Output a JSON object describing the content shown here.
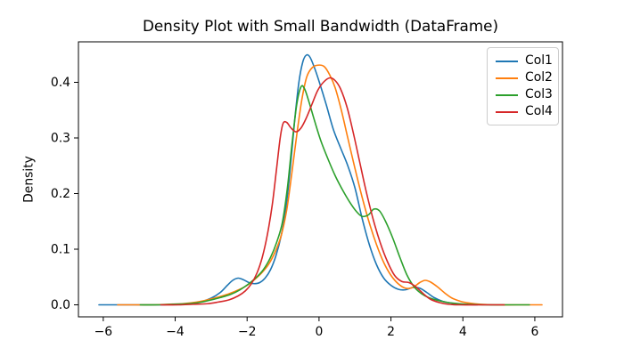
{
  "figure": {
    "title": "Density Plot with Small Bandwidth (DataFrame)",
    "ylabel": "Density"
  },
  "chart_data": {
    "type": "line",
    "subtype": "kde-density",
    "title": "Density Plot with Small Bandwidth (DataFrame)",
    "xlabel": "",
    "ylabel": "Density",
    "grid": false,
    "legend_position": "upper right",
    "xlim": [
      -6.69,
      6.77
    ],
    "ylim": [
      -0.0216,
      0.4728
    ],
    "x_ticks": [
      -6,
      -4,
      -2,
      0,
      2,
      4,
      6
    ],
    "x_tick_labels": [
      "−6",
      "−4",
      "−2",
      "0",
      "2",
      "4",
      "6"
    ],
    "y_ticks": [
      0.0,
      0.1,
      0.2,
      0.3,
      0.4
    ],
    "y_tick_labels": [
      "0.0",
      "0.1",
      "0.2",
      "0.3",
      "0.4"
    ],
    "series": [
      {
        "name": "Col1",
        "color": "#1f77b4",
        "points": [
          [
            -6.12,
            0
          ],
          [
            -5.6,
            0
          ],
          [
            -5.0,
            0
          ],
          [
            -4.4,
            0
          ],
          [
            -4.0,
            0.001
          ],
          [
            -3.6,
            0.002
          ],
          [
            -3.3,
            0.005
          ],
          [
            -3.0,
            0.012
          ],
          [
            -2.75,
            0.022
          ],
          [
            -2.55,
            0.035
          ],
          [
            -2.4,
            0.044
          ],
          [
            -2.25,
            0.048
          ],
          [
            -2.1,
            0.045
          ],
          [
            -1.95,
            0.04
          ],
          [
            -1.8,
            0.038
          ],
          [
            -1.65,
            0.04
          ],
          [
            -1.5,
            0.048
          ],
          [
            -1.35,
            0.063
          ],
          [
            -1.2,
            0.088
          ],
          [
            -1.05,
            0.125
          ],
          [
            -0.92,
            0.175
          ],
          [
            -0.8,
            0.245
          ],
          [
            -0.68,
            0.33
          ],
          [
            -0.56,
            0.4
          ],
          [
            -0.45,
            0.437
          ],
          [
            -0.35,
            0.449
          ],
          [
            -0.25,
            0.445
          ],
          [
            -0.12,
            0.425
          ],
          [
            0.02,
            0.398
          ],
          [
            0.2,
            0.36
          ],
          [
            0.4,
            0.315
          ],
          [
            0.6,
            0.282
          ],
          [
            0.8,
            0.25
          ],
          [
            1.0,
            0.21
          ],
          [
            1.2,
            0.155
          ],
          [
            1.4,
            0.108
          ],
          [
            1.6,
            0.072
          ],
          [
            1.8,
            0.048
          ],
          [
            2.0,
            0.035
          ],
          [
            2.2,
            0.028
          ],
          [
            2.4,
            0.027
          ],
          [
            2.6,
            0.031
          ],
          [
            2.8,
            0.03
          ],
          [
            3.0,
            0.022
          ],
          [
            3.2,
            0.013
          ],
          [
            3.45,
            0.006
          ],
          [
            3.7,
            0.003
          ],
          [
            4.0,
            0.001
          ],
          [
            4.4,
            0
          ]
        ]
      },
      {
        "name": "Col2",
        "color": "#ff7f0e",
        "points": [
          [
            -5.6,
            0
          ],
          [
            -5.1,
            0
          ],
          [
            -4.6,
            0
          ],
          [
            -4.2,
            0.001
          ],
          [
            -3.8,
            0.002
          ],
          [
            -3.4,
            0.005
          ],
          [
            -3.1,
            0.009
          ],
          [
            -2.8,
            0.014
          ],
          [
            -2.5,
            0.02
          ],
          [
            -2.2,
            0.028
          ],
          [
            -2.0,
            0.035
          ],
          [
            -1.8,
            0.045
          ],
          [
            -1.6,
            0.057
          ],
          [
            -1.4,
            0.073
          ],
          [
            -1.2,
            0.098
          ],
          [
            -1.05,
            0.125
          ],
          [
            -0.9,
            0.17
          ],
          [
            -0.76,
            0.235
          ],
          [
            -0.62,
            0.305
          ],
          [
            -0.48,
            0.368
          ],
          [
            -0.34,
            0.41
          ],
          [
            -0.18,
            0.427
          ],
          [
            0.0,
            0.431
          ],
          [
            0.15,
            0.428
          ],
          [
            0.3,
            0.413
          ],
          [
            0.45,
            0.39
          ],
          [
            0.62,
            0.35
          ],
          [
            0.8,
            0.3
          ],
          [
            1.0,
            0.245
          ],
          [
            1.2,
            0.193
          ],
          [
            1.4,
            0.147
          ],
          [
            1.6,
            0.108
          ],
          [
            1.8,
            0.076
          ],
          [
            2.0,
            0.053
          ],
          [
            2.2,
            0.038
          ],
          [
            2.4,
            0.03
          ],
          [
            2.6,
            0.031
          ],
          [
            2.8,
            0.04
          ],
          [
            2.95,
            0.044
          ],
          [
            3.1,
            0.041
          ],
          [
            3.3,
            0.032
          ],
          [
            3.5,
            0.021
          ],
          [
            3.7,
            0.012
          ],
          [
            3.95,
            0.006
          ],
          [
            4.2,
            0.003
          ],
          [
            4.5,
            0.001
          ],
          [
            4.9,
            0
          ],
          [
            5.5,
            0
          ],
          [
            6.2,
            0
          ]
        ]
      },
      {
        "name": "Col3",
        "color": "#2ca02c",
        "points": [
          [
            -4.97,
            0
          ],
          [
            -4.5,
            0
          ],
          [
            -4.1,
            0.001
          ],
          [
            -3.7,
            0.002
          ],
          [
            -3.35,
            0.004
          ],
          [
            -3.05,
            0.008
          ],
          [
            -2.75,
            0.013
          ],
          [
            -2.45,
            0.019
          ],
          [
            -2.2,
            0.027
          ],
          [
            -1.95,
            0.038
          ],
          [
            -1.75,
            0.049
          ],
          [
            -1.55,
            0.063
          ],
          [
            -1.35,
            0.085
          ],
          [
            -1.18,
            0.112
          ],
          [
            -1.02,
            0.148
          ],
          [
            -0.88,
            0.21
          ],
          [
            -0.75,
            0.29
          ],
          [
            -0.62,
            0.36
          ],
          [
            -0.5,
            0.392
          ],
          [
            -0.4,
            0.388
          ],
          [
            -0.28,
            0.365
          ],
          [
            -0.12,
            0.33
          ],
          [
            0.05,
            0.295
          ],
          [
            0.25,
            0.262
          ],
          [
            0.45,
            0.232
          ],
          [
            0.65,
            0.207
          ],
          [
            0.85,
            0.185
          ],
          [
            1.05,
            0.167
          ],
          [
            1.2,
            0.159
          ],
          [
            1.38,
            0.162
          ],
          [
            1.52,
            0.172
          ],
          [
            1.68,
            0.169
          ],
          [
            1.85,
            0.15
          ],
          [
            2.05,
            0.12
          ],
          [
            2.25,
            0.085
          ],
          [
            2.45,
            0.053
          ],
          [
            2.65,
            0.032
          ],
          [
            2.85,
            0.02
          ],
          [
            3.05,
            0.013
          ],
          [
            3.3,
            0.008
          ],
          [
            3.6,
            0.004
          ],
          [
            3.9,
            0.002
          ],
          [
            4.2,
            0.001
          ],
          [
            4.6,
            0
          ],
          [
            5.2,
            0
          ],
          [
            5.85,
            0
          ]
        ]
      },
      {
        "name": "Col4",
        "color": "#d62728",
        "points": [
          [
            -4.4,
            0
          ],
          [
            -3.9,
            0
          ],
          [
            -3.5,
            0.001
          ],
          [
            -3.1,
            0.002
          ],
          [
            -2.8,
            0.005
          ],
          [
            -2.5,
            0.009
          ],
          [
            -2.25,
            0.016
          ],
          [
            -2.05,
            0.025
          ],
          [
            -1.88,
            0.038
          ],
          [
            -1.72,
            0.058
          ],
          [
            -1.58,
            0.085
          ],
          [
            -1.44,
            0.125
          ],
          [
            -1.3,
            0.18
          ],
          [
            -1.18,
            0.245
          ],
          [
            -1.08,
            0.3
          ],
          [
            -1.0,
            0.326
          ],
          [
            -0.9,
            0.328
          ],
          [
            -0.78,
            0.318
          ],
          [
            -0.64,
            0.311
          ],
          [
            -0.5,
            0.318
          ],
          [
            -0.36,
            0.335
          ],
          [
            -0.2,
            0.36
          ],
          [
            -0.04,
            0.385
          ],
          [
            0.12,
            0.4
          ],
          [
            0.3,
            0.408
          ],
          [
            0.45,
            0.403
          ],
          [
            0.6,
            0.388
          ],
          [
            0.78,
            0.355
          ],
          [
            0.95,
            0.31
          ],
          [
            1.12,
            0.26
          ],
          [
            1.3,
            0.207
          ],
          [
            1.5,
            0.155
          ],
          [
            1.7,
            0.112
          ],
          [
            1.9,
            0.078
          ],
          [
            2.1,
            0.053
          ],
          [
            2.3,
            0.042
          ],
          [
            2.5,
            0.04
          ],
          [
            2.7,
            0.032
          ],
          [
            2.9,
            0.02
          ],
          [
            3.1,
            0.01
          ],
          [
            3.35,
            0.004
          ],
          [
            3.6,
            0.001
          ],
          [
            3.9,
            0
          ],
          [
            4.5,
            0
          ],
          [
            5.15,
            0
          ]
        ]
      }
    ]
  }
}
